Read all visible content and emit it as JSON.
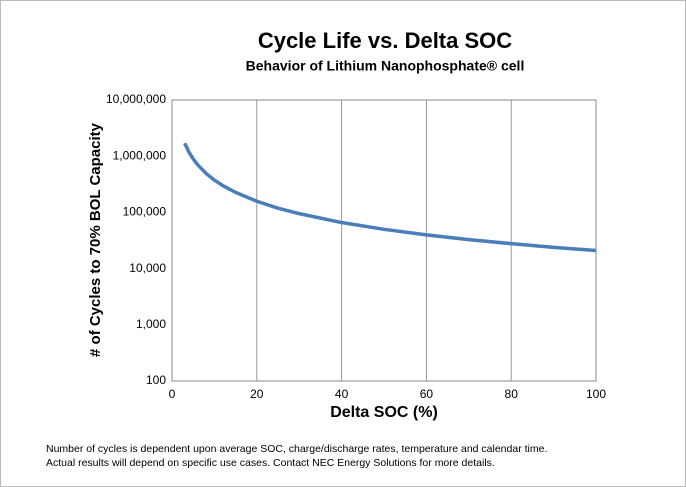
{
  "chart_data": {
    "type": "line",
    "title": "Cycle Life vs. Delta SOC",
    "subtitle": "Behavior of Lithium Nanophosphate® cell",
    "x_label": "Delta SOC (%)",
    "y_label": "# of Cycles to 70% BOL Capacity",
    "footnote": [
      "Number of cycles is dependent upon average SOC, charge/discharge rates, temperature and calendar time.",
      "Actual results will depend on specific use cases. Contact NEC Energy Solutions for more details."
    ],
    "x": [
      3,
      4,
      5,
      6,
      8,
      10,
      12,
      15,
      20,
      25,
      30,
      40,
      50,
      60,
      70,
      80,
      90,
      100
    ],
    "values": [
      1700000,
      1180000,
      896000,
      713000,
      496000,
      376000,
      299000,
      227000,
      158000,
      119000,
      95000,
      66000,
      50000,
      39800,
      32800,
      27800,
      23900,
      21000
    ],
    "color": "#4a7ebb",
    "xlim": [
      0,
      100
    ],
    "xticks": [
      0,
      20,
      40,
      60,
      80,
      100
    ],
    "ylim": [
      100,
      10000000
    ],
    "yticks": [
      100,
      {
        "value": 1000,
        "label": "1,000"
      },
      {
        "value": 10000,
        "label": "10,000"
      },
      {
        "value": 100000,
        "label": "100,000"
      },
      {
        "value": 1000000,
        "label": "1,000,000"
      },
      {
        "value": 10000000,
        "label": "10,000,000"
      }
    ],
    "y_scale": "log",
    "grid": "x"
  }
}
